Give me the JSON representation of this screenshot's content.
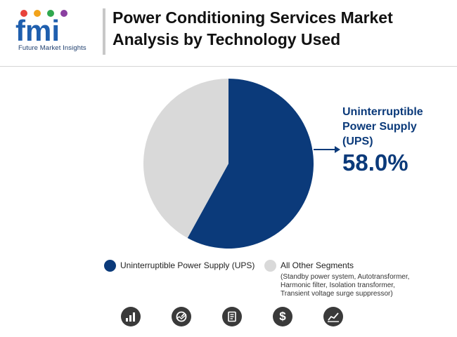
{
  "header": {
    "logo_text": "fmi",
    "logo_caption": "Future Market Insights",
    "title": "Power Conditioning Services Market Analysis by Technology Used"
  },
  "colors": {
    "primary": "#0b3a7a",
    "secondary": "#d9d9d9"
  },
  "chart_data": {
    "type": "pie",
    "title": "Power Conditioning Services Market Analysis by Technology Used",
    "slices": [
      {
        "label": "Uninterruptible Power Supply (UPS)",
        "value": 58.0,
        "color": "#0b3a7a"
      },
      {
        "label": "All Other Segments",
        "value": 42.0,
        "color": "#d9d9d9"
      }
    ],
    "callout": {
      "label": "Uninterruptible Power Supply (UPS)",
      "value": "58.0%"
    },
    "legend": [
      {
        "label": "Uninterruptible Power Supply (UPS)",
        "color": "#0b3a7a",
        "detail": ""
      },
      {
        "label": "All Other Segments",
        "color": "#d9d9d9",
        "detail": "(Standby power system, Autotransformer, Harmonic filter, Isolation transformer, Transient voltage surge suppressor)"
      }
    ],
    "legend_position": "bottom"
  },
  "footer_icons": [
    "bar-chart-icon",
    "gauge-icon",
    "document-icon",
    "dollar-icon",
    "trend-chart-icon"
  ]
}
